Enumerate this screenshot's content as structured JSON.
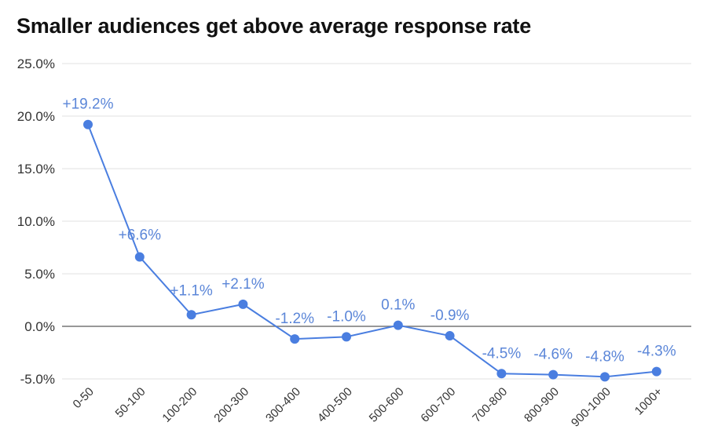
{
  "chart_data": {
    "type": "line",
    "title": "Smaller audiences get above average response rate",
    "xlabel": "",
    "ylabel": "",
    "categories": [
      "0-50",
      "50-100",
      "100-200",
      "200-300",
      "300-400",
      "400-500",
      "500-600",
      "600-700",
      "700-800",
      "800-900",
      "900-1000",
      "1000+"
    ],
    "values": [
      19.2,
      6.6,
      1.1,
      2.1,
      -1.2,
      -1.0,
      0.1,
      -0.9,
      -4.5,
      -4.6,
      -4.8,
      -4.3
    ],
    "data_labels": [
      "+19.2%",
      "+6.6%",
      "+1.1%",
      "+2.1%",
      "-1.2%",
      "-1.0%",
      "0.1%",
      "-0.9%",
      "-4.5%",
      "-4.6%",
      "-4.8%",
      "-4.3%"
    ],
    "ylim": [
      -5,
      25
    ],
    "yticks": [
      -5,
      0,
      5,
      10,
      15,
      20,
      25
    ],
    "ytick_labels": [
      "-5.0%",
      "0.0%",
      "5.0%",
      "10.0%",
      "15.0%",
      "20.0%",
      "25.0%"
    ],
    "grid": true,
    "legend": "none",
    "colors": {
      "series": "#4a7ee0",
      "label": "#5b86d8",
      "grid": "#e0e0e0",
      "zero_line": "#777777"
    }
  }
}
